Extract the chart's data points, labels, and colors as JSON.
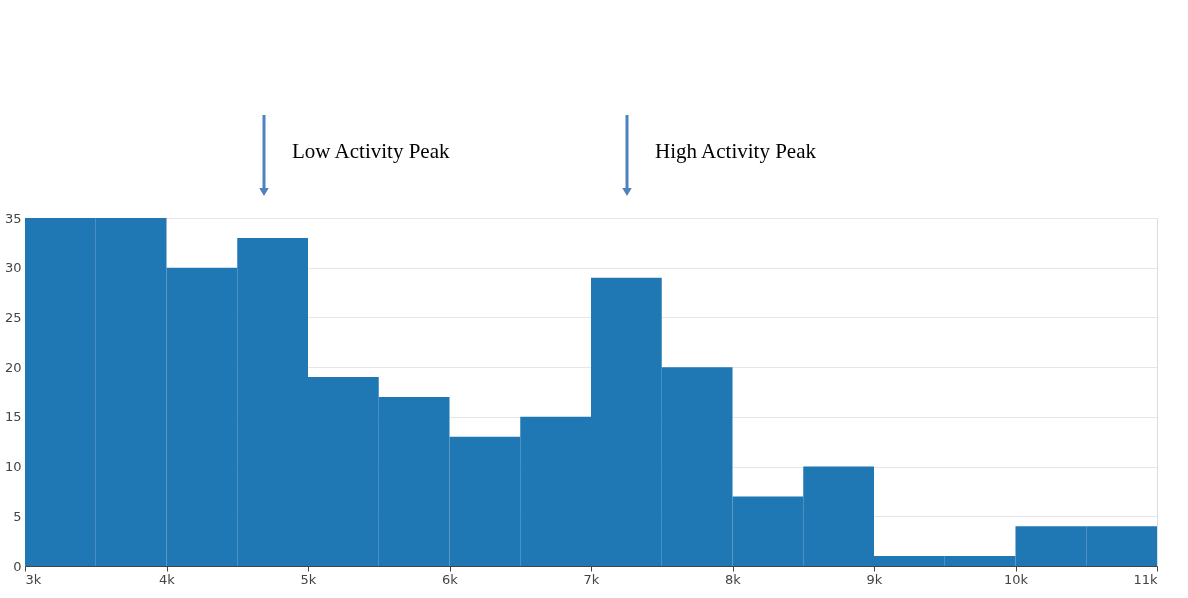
{
  "chart_data": {
    "type": "histogram",
    "bins": [
      3000,
      3500,
      4000,
      4500,
      5000,
      5500,
      6000,
      6500,
      7000,
      7500,
      8000,
      8500,
      9000,
      9500,
      10000,
      10500,
      11000
    ],
    "values": [
      35,
      35,
      30,
      33,
      19,
      17,
      13,
      15,
      29,
      20,
      7,
      10,
      1,
      1,
      4,
      4
    ],
    "color": "#1f77b4",
    "xlim": [
      3000,
      11000
    ],
    "xticks": [
      {
        "value": 3000,
        "label": "3k"
      },
      {
        "value": 4000,
        "label": "4k"
      },
      {
        "value": 5000,
        "label": "5k"
      },
      {
        "value": 6000,
        "label": "6k"
      },
      {
        "value": 7000,
        "label": "7k"
      },
      {
        "value": 8000,
        "label": "8k"
      },
      {
        "value": 9000,
        "label": "9k"
      },
      {
        "value": 10000,
        "label": "10k"
      },
      {
        "value": 11000,
        "label": "11k"
      }
    ],
    "ylim": [
      0,
      35
    ],
    "yticks": [
      0,
      5,
      10,
      15,
      20,
      25,
      30,
      35
    ],
    "grid": "y",
    "annotations": [
      "Low Activity Peak",
      "High Activity Peak"
    ]
  }
}
